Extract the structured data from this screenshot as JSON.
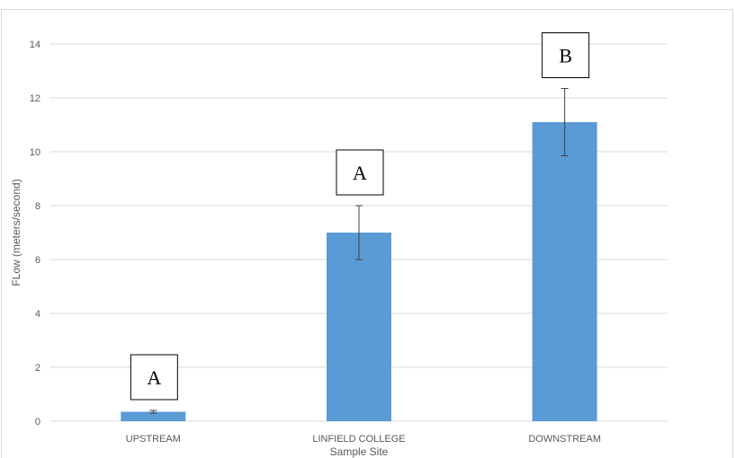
{
  "chart_data": {
    "type": "bar",
    "categories": [
      "UPSTREAM",
      "LINFIELD COLLEGE",
      "DOWNSTREAM"
    ],
    "values": [
      0.35,
      7.0,
      11.1
    ],
    "error": [
      0.05,
      1.0,
      1.25
    ],
    "xlabel": "Sample Site",
    "ylabel": "FLow (meters/second)",
    "ylim": [
      0,
      14
    ],
    "yticks": [
      0,
      2,
      4,
      6,
      8,
      10,
      12,
      14
    ],
    "grid": true,
    "annotations": [
      "A",
      "A",
      "B"
    ],
    "colors": {
      "bar": "#5b9bd5",
      "grid": "#d9d9d9",
      "error_bar": "#404040"
    }
  }
}
